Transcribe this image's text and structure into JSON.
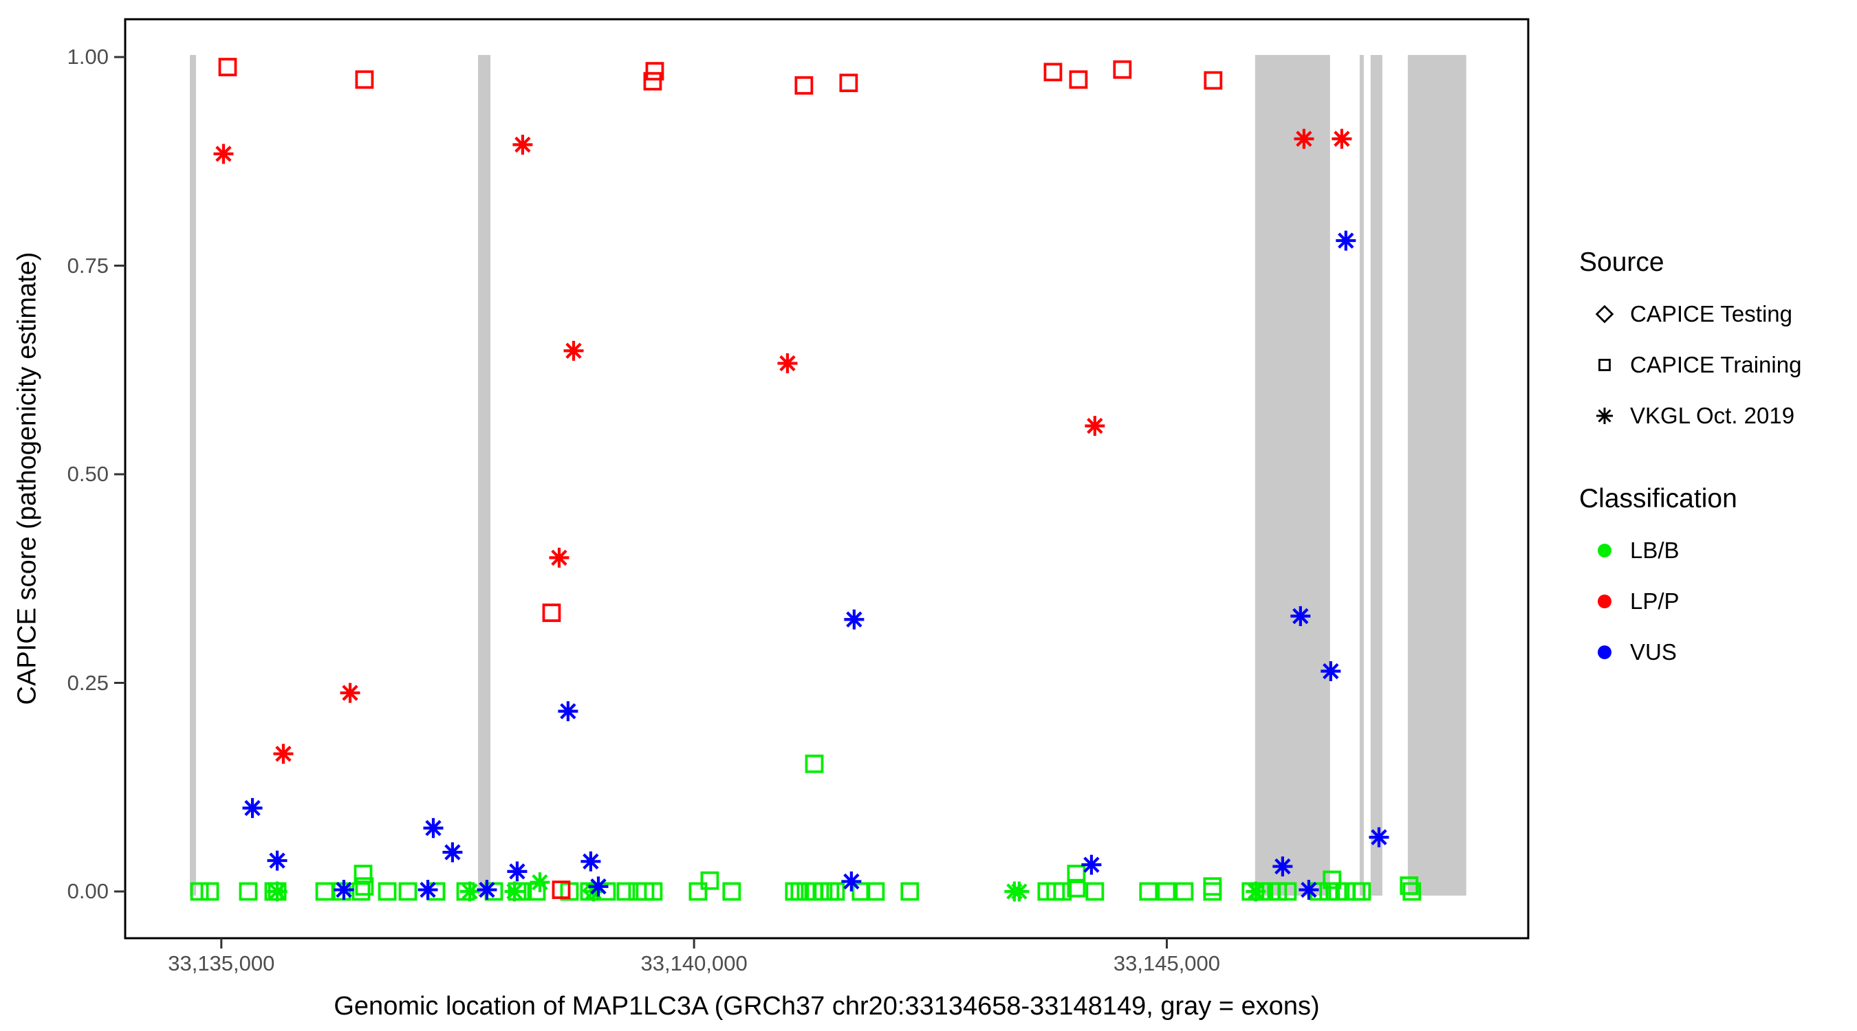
{
  "figure": {
    "x_axis_title": "Genomic location of MAP1LC3A (GRCh37 chr20:33134658-33148149, gray = exons)",
    "y_axis_title": "CAPICE score (pathogenicity estimate)"
  },
  "legend": {
    "source": {
      "title": "Source",
      "items": [
        {
          "label": "CAPICE Testing",
          "marker": "diamond"
        },
        {
          "label": "CAPICE Training",
          "marker": "square"
        },
        {
          "label": "VKGL Oct. 2019",
          "marker": "asterisk"
        }
      ]
    },
    "classification": {
      "title": "Classification",
      "items": [
        {
          "label": "LB/B",
          "color": "#00EE00"
        },
        {
          "label": "LP/P",
          "color": "#FF0000"
        },
        {
          "label": "VUS",
          "color": "#0000FF"
        }
      ]
    }
  },
  "chart_data": {
    "type": "scatter",
    "title": "",
    "xlabel": "Genomic location of MAP1LC3A (GRCh37 chr20:33134658-33148149, gray = exons)",
    "ylabel": "CAPICE score (pathogenicity estimate)",
    "x_axis": {
      "min": 33133983,
      "max": 33148823,
      "ticks": [
        33135000,
        33140000,
        33145000
      ],
      "tick_labels": [
        "33,135,000",
        "33,140,000",
        "33,145,000"
      ]
    },
    "y_axis": {
      "ticks": [
        0.0,
        0.25,
        0.5,
        0.75,
        1.0
      ],
      "tick_labels": [
        "0.00",
        "0.25",
        "0.50",
        "0.75",
        "1.00"
      ],
      "range_shown": [
        -0.056,
        1.045
      ]
    },
    "exons_note": "gray vertical bands = exons",
    "exons": [
      [
        33134667,
        33134732
      ],
      [
        33137715,
        33137846
      ],
      [
        33145934,
        33146727
      ],
      [
        33147040,
        33147083
      ],
      [
        33147156,
        33147280
      ],
      [
        33147549,
        33148167
      ]
    ],
    "colors": {
      "LB/B": "#00EE00",
      "LP/P": "#FF0000",
      "VUS": "#0000FF",
      "exon": "#C9C9C9"
    },
    "shapes": {
      "testing": "diamond",
      "training": "square",
      "vkgl": "asterisk"
    },
    "point_format": [
      "genomic_position",
      "capice_score",
      "source",
      "classification"
    ],
    "points": [
      [
        33135067,
        0.988,
        "training",
        "LP/P"
      ],
      [
        33136514,
        0.973,
        "training",
        "LP/P"
      ],
      [
        33139562,
        0.971,
        "training",
        "LP/P"
      ],
      [
        33139584,
        0.983,
        "training",
        "LP/P"
      ],
      [
        33141162,
        0.966,
        "training",
        "LP/P"
      ],
      [
        33141635,
        0.969,
        "training",
        "LP/P"
      ],
      [
        33143796,
        0.982,
        "training",
        "LP/P"
      ],
      [
        33144065,
        0.973,
        "training",
        "LP/P"
      ],
      [
        33144530,
        0.985,
        "training",
        "LP/P"
      ],
      [
        33145490,
        0.972,
        "training",
        "LP/P"
      ],
      [
        33138493,
        0.334,
        "training",
        "LP/P"
      ],
      [
        33138595,
        0.002,
        "training",
        "LP/P"
      ],
      [
        33135023,
        0.884,
        "vkgl",
        "LP/P"
      ],
      [
        33135656,
        0.165,
        "vkgl",
        "LP/P"
      ],
      [
        33136362,
        0.238,
        "vkgl",
        "LP/P"
      ],
      [
        33138187,
        0.895,
        "vkgl",
        "LP/P"
      ],
      [
        33138573,
        0.4,
        "vkgl",
        "LP/P"
      ],
      [
        33138726,
        0.648,
        "vkgl",
        "LP/P"
      ],
      [
        33140988,
        0.633,
        "vkgl",
        "LP/P"
      ],
      [
        33144239,
        0.558,
        "vkgl",
        "LP/P"
      ],
      [
        33146451,
        0.902,
        "vkgl",
        "LP/P"
      ],
      [
        33146851,
        0.902,
        "vkgl",
        "LP/P"
      ],
      [
        33135329,
        0.1,
        "vkgl",
        "VUS"
      ],
      [
        33135591,
        0.037,
        "vkgl",
        "VUS"
      ],
      [
        33136296,
        0.002,
        "vkgl",
        "VUS"
      ],
      [
        33137184,
        0.002,
        "vkgl",
        "VUS"
      ],
      [
        33137242,
        0.076,
        "vkgl",
        "VUS"
      ],
      [
        33137445,
        0.047,
        "vkgl",
        "VUS"
      ],
      [
        33137809,
        0.002,
        "vkgl",
        "VUS"
      ],
      [
        33138129,
        0.024,
        "vkgl",
        "VUS"
      ],
      [
        33138667,
        0.216,
        "vkgl",
        "VUS"
      ],
      [
        33138907,
        0.036,
        "vkgl",
        "VUS"
      ],
      [
        33138988,
        0.006,
        "vkgl",
        "VUS"
      ],
      [
        33141664,
        0.012,
        "vkgl",
        "VUS"
      ],
      [
        33141693,
        0.326,
        "vkgl",
        "VUS"
      ],
      [
        33144203,
        0.032,
        "vkgl",
        "VUS"
      ],
      [
        33146225,
        0.03,
        "vkgl",
        "VUS"
      ],
      [
        33146414,
        0.33,
        "vkgl",
        "VUS"
      ],
      [
        33146502,
        0.002,
        "vkgl",
        "VUS"
      ],
      [
        33146734,
        0.264,
        "vkgl",
        "VUS"
      ],
      [
        33146894,
        0.78,
        "vkgl",
        "VUS"
      ],
      [
        33147244,
        0.065,
        "vkgl",
        "VUS"
      ],
      [
        33134769,
        0.0,
        "training",
        "LB/B"
      ],
      [
        33134878,
        0.0,
        "training",
        "LB/B"
      ],
      [
        33135285,
        0.0,
        "training",
        "LB/B"
      ],
      [
        33135554,
        0.0,
        "training",
        "LB/B"
      ],
      [
        33135591,
        0.0,
        "training",
        "LB/B"
      ],
      [
        33136093,
        0.0,
        "training",
        "LB/B"
      ],
      [
        33136275,
        0.0,
        "training",
        "LB/B"
      ],
      [
        33136478,
        0.0,
        "training",
        "LB/B"
      ],
      [
        33136500,
        0.021,
        "training",
        "LB/B"
      ],
      [
        33136514,
        0.006,
        "training",
        "LB/B"
      ],
      [
        33136755,
        0.0,
        "training",
        "LB/B"
      ],
      [
        33136973,
        0.0,
        "training",
        "LB/B"
      ],
      [
        33137271,
        0.0,
        "training",
        "LB/B"
      ],
      [
        33137584,
        0.0,
        "training",
        "LB/B"
      ],
      [
        33137882,
        0.0,
        "training",
        "LB/B"
      ],
      [
        33138129,
        0.0,
        "training",
        "LB/B"
      ],
      [
        33138187,
        0.0,
        "training",
        "LB/B"
      ],
      [
        33138333,
        0.0,
        "training",
        "LB/B"
      ],
      [
        33138682,
        0.0,
        "training",
        "LB/B"
      ],
      [
        33138893,
        0.0,
        "training",
        "LB/B"
      ],
      [
        33139075,
        0.0,
        "training",
        "LB/B"
      ],
      [
        33139278,
        0.0,
        "training",
        "LB/B"
      ],
      [
        33139402,
        0.0,
        "training",
        "LB/B"
      ],
      [
        33139482,
        0.0,
        "training",
        "LB/B"
      ],
      [
        33139569,
        0.0,
        "training",
        "LB/B"
      ],
      [
        33140042,
        0.0,
        "training",
        "LB/B"
      ],
      [
        33140166,
        0.013,
        "training",
        "LB/B"
      ],
      [
        33140398,
        0.0,
        "training",
        "LB/B"
      ],
      [
        33141060,
        0.0,
        "training",
        "LB/B"
      ],
      [
        33141118,
        0.0,
        "training",
        "LB/B"
      ],
      [
        33141184,
        0.0,
        "training",
        "LB/B"
      ],
      [
        33141264,
        0.0,
        "training",
        "LB/B"
      ],
      [
        33141272,
        0.153,
        "training",
        "LB/B"
      ],
      [
        33141366,
        0.0,
        "training",
        "LB/B"
      ],
      [
        33141438,
        0.0,
        "training",
        "LB/B"
      ],
      [
        33141497,
        0.0,
        "training",
        "LB/B"
      ],
      [
        33141766,
        0.0,
        "training",
        "LB/B"
      ],
      [
        33141919,
        0.0,
        "training",
        "LB/B"
      ],
      [
        33142282,
        0.0,
        "training",
        "LB/B"
      ],
      [
        33143730,
        0.0,
        "training",
        "LB/B"
      ],
      [
        33143824,
        0.0,
        "training",
        "LB/B"
      ],
      [
        33143897,
        0.0,
        "training",
        "LB/B"
      ],
      [
        33144043,
        0.021,
        "training",
        "LB/B"
      ],
      [
        33144043,
        0.004,
        "training",
        "LB/B"
      ],
      [
        33144239,
        0.0,
        "training",
        "LB/B"
      ],
      [
        33144806,
        0.0,
        "training",
        "LB/B"
      ],
      [
        33144996,
        0.0,
        "training",
        "LB/B"
      ],
      [
        33145185,
        0.0,
        "training",
        "LB/B"
      ],
      [
        33145483,
        0.006,
        "training",
        "LB/B"
      ],
      [
        33145483,
        0.0,
        "training",
        "LB/B"
      ],
      [
        33145890,
        0.0,
        "training",
        "LB/B"
      ],
      [
        33145992,
        0.0,
        "training",
        "LB/B"
      ],
      [
        33146028,
        0.0,
        "training",
        "LB/B"
      ],
      [
        33146101,
        0.0,
        "training",
        "LB/B"
      ],
      [
        33146174,
        0.0,
        "training",
        "LB/B"
      ],
      [
        33146276,
        0.0,
        "training",
        "LB/B"
      ],
      [
        33146610,
        0.0,
        "training",
        "LB/B"
      ],
      [
        33146712,
        0.0,
        "training",
        "LB/B"
      ],
      [
        33146748,
        0.014,
        "training",
        "LB/B"
      ],
      [
        33146807,
        0.0,
        "training",
        "LB/B"
      ],
      [
        33146901,
        0.0,
        "training",
        "LB/B"
      ],
      [
        33147003,
        0.0,
        "training",
        "LB/B"
      ],
      [
        33147061,
        0.0,
        "training",
        "LB/B"
      ],
      [
        33147563,
        0.007,
        "training",
        "LB/B"
      ],
      [
        33147592,
        0.0,
        "training",
        "LB/B"
      ],
      [
        33135591,
        0.0,
        "vkgl",
        "LB/B"
      ],
      [
        33137628,
        0.0,
        "vkgl",
        "LB/B"
      ],
      [
        33138100,
        0.0,
        "vkgl",
        "LB/B"
      ],
      [
        33138369,
        0.011,
        "vkgl",
        "LB/B"
      ],
      [
        33138936,
        0.0,
        "vkgl",
        "LB/B"
      ],
      [
        33143388,
        0.0,
        "vkgl",
        "LB/B"
      ],
      [
        33143439,
        0.0,
        "vkgl",
        "LB/B"
      ],
      [
        33145941,
        0.0,
        "vkgl",
        "LB/B"
      ],
      [
        33138922,
        0.001,
        "testing",
        "LB/B"
      ]
    ]
  }
}
